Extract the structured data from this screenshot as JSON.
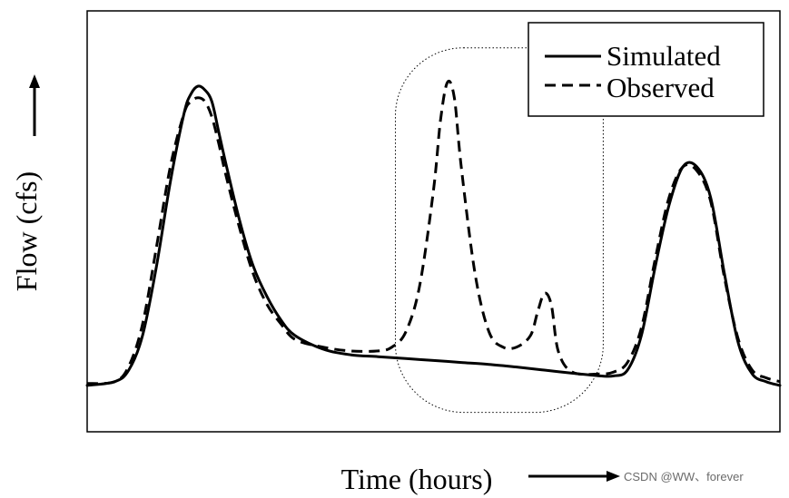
{
  "chart_data": {
    "type": "line",
    "title": "",
    "xlabel": "Time (hours)",
    "ylabel": "Flow (cfs)",
    "xlim": [
      0,
      100
    ],
    "ylim": [
      0,
      100
    ],
    "grid": false,
    "ticks": "none",
    "legend": {
      "position": "top-right",
      "entries": [
        "Simulated",
        "Observed"
      ]
    },
    "series": [
      {
        "name": "Simulated",
        "style": "solid",
        "color": "#000000",
        "x": [
          0,
          4,
          6,
          8,
          10,
          12,
          14,
          15,
          16,
          17,
          18,
          19,
          20,
          22,
          24,
          26,
          28,
          30,
          34,
          38,
          42,
          46,
          50,
          54,
          58,
          62,
          66,
          70,
          74,
          76,
          78,
          80,
          82,
          84,
          86,
          88,
          90,
          92,
          94,
          96,
          98,
          100
        ],
        "values": [
          9,
          10,
          13,
          22,
          40,
          62,
          80,
          85,
          87,
          86,
          83,
          75,
          67,
          52,
          40,
          32,
          26,
          22,
          18.5,
          17,
          16.5,
          16,
          15.5,
          15,
          14.5,
          13.8,
          13,
          12.2,
          11.5,
          11.5,
          13,
          22,
          40,
          56,
          66,
          66,
          58,
          38,
          20,
          12,
          10,
          9
        ]
      },
      {
        "name": "Observed",
        "style": "dashed",
        "color": "#000000",
        "x": [
          0,
          4,
          6,
          8,
          10,
          12,
          14,
          15,
          16,
          17,
          18,
          19,
          20,
          22,
          24,
          26,
          28,
          30,
          34,
          38,
          42,
          44,
          46,
          48,
          50,
          51,
          52,
          53,
          54,
          56,
          58,
          60,
          62,
          64,
          65,
          66,
          67,
          68,
          70,
          74,
          76,
          78,
          80,
          82,
          84,
          86,
          88,
          90,
          92,
          94,
          96,
          98,
          100
        ],
        "values": [
          9.5,
          10,
          14,
          25,
          45,
          66,
          80,
          83,
          84,
          83,
          79,
          72,
          64,
          50,
          38,
          30,
          25,
          21,
          19,
          18,
          18,
          19,
          23,
          35,
          60,
          78,
          88,
          84,
          66,
          38,
          23,
          19,
          19,
          22,
          28,
          33,
          30,
          18,
          12.5,
          12,
          12.5,
          15,
          24,
          42,
          58,
          66,
          65,
          57,
          37,
          21,
          13,
          11,
          10
        ]
      }
    ],
    "annotations": [
      {
        "type": "rounded-rectangle",
        "style": "dotted",
        "x_range": [
          44.5,
          74.5
        ],
        "y_range": [
          2,
          97
        ]
      }
    ]
  },
  "watermark": "CSDN @WW、forever"
}
